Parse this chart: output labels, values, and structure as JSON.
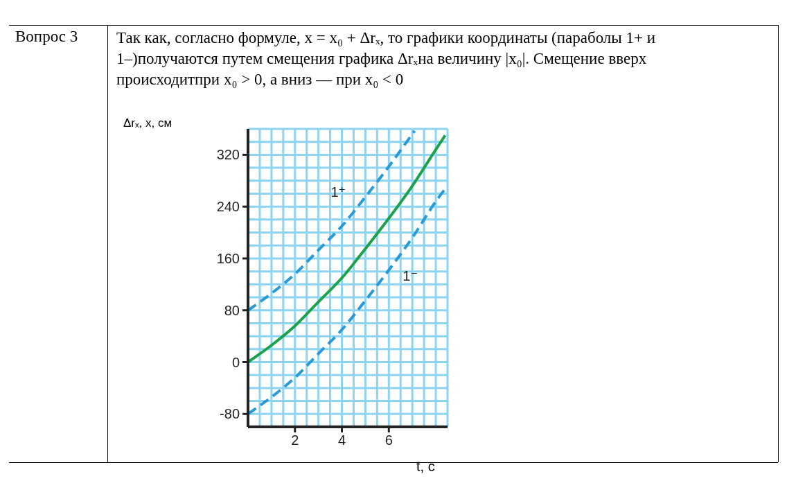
{
  "chart_data": {
    "type": "line",
    "annotations": [
      "Вопрос 3",
      "Так как, согласно формуле, x = x₀ + Δrₓ, то графики координаты (параболы 1+ и 1–)получаются путем смещения графика Δrₓна величину |x₀|. Смещение вверх происходитпри x₀ > 0, а вниз — при x₀ < 0"
    ],
    "xlabel": "t, с",
    "ylabel": "Δrₓ, x, см",
    "xlim": [
      0,
      8.5
    ],
    "ylim": [
      -100,
      360
    ],
    "xticks": [
      {
        "value": 0.5,
        "label": null
      },
      {
        "value": 1,
        "label": null
      },
      {
        "value": 1.5,
        "label": null
      },
      2,
      {
        "value": 2.5,
        "label": null
      },
      {
        "value": 3,
        "label": null
      },
      {
        "value": 3.5,
        "label": null
      },
      4,
      {
        "value": 4.5,
        "label": null
      },
      {
        "value": 5,
        "label": null
      },
      {
        "value": 5.5,
        "label": null
      },
      6,
      {
        "value": 6.5,
        "label": null
      },
      {
        "value": 7,
        "label": null
      },
      {
        "value": 7.5,
        "label": null
      },
      {
        "value": 8,
        "label": null
      },
      {
        "value": 8.5,
        "label": null
      }
    ],
    "yticks": [
      {
        "value": -100,
        "label": null
      },
      -80,
      {
        "value": -60,
        "label": null
      },
      {
        "value": -40,
        "label": null
      },
      {
        "value": -20,
        "label": null
      },
      0,
      {
        "value": 20,
        "label": null
      },
      {
        "value": 40,
        "label": null
      },
      {
        "value": 60,
        "label": null
      },
      80,
      {
        "value": 100,
        "label": null
      },
      {
        "value": 120,
        "label": null
      },
      {
        "value": 140,
        "label": null
      },
      160,
      {
        "value": 180,
        "label": null
      },
      {
        "value": 200,
        "label": null
      },
      {
        "value": 220,
        "label": null
      },
      240,
      {
        "value": 260,
        "label": null
      },
      {
        "value": 280,
        "label": null
      },
      {
        "value": 300,
        "label": null
      },
      320,
      {
        "value": 340,
        "label": null
      },
      {
        "value": 360,
        "label": null
      }
    ],
    "grid": true,
    "marker": "none",
    "series": [
      {
        "color": "#1ca24c",
        "line_style": "solid",
        "x": [
          0,
          1,
          2,
          3,
          4,
          5,
          6,
          7,
          8,
          8.4
        ],
        "values": [
          0,
          26,
          56,
          93,
          130,
          175,
          222,
          272,
          328,
          350
        ]
      },
      {
        "name": "1⁺",
        "color": "#2a9ad6",
        "line_style": "dashed",
        "x": [
          0,
          1,
          2,
          3,
          4,
          5,
          6,
          7,
          7.1
        ],
        "values": [
          80,
          106,
          136,
          173,
          210,
          255,
          302,
          352,
          357
        ]
      },
      {
        "name": "1⁻",
        "color": "#2a9ad6",
        "line_style": "dashed",
        "x": [
          0,
          1,
          2,
          3,
          4,
          5,
          6,
          7,
          8,
          8.45
        ],
        "values": [
          -80,
          -54,
          -24,
          13,
          50,
          95,
          142,
          192,
          248,
          270
        ]
      }
    ]
  }
}
